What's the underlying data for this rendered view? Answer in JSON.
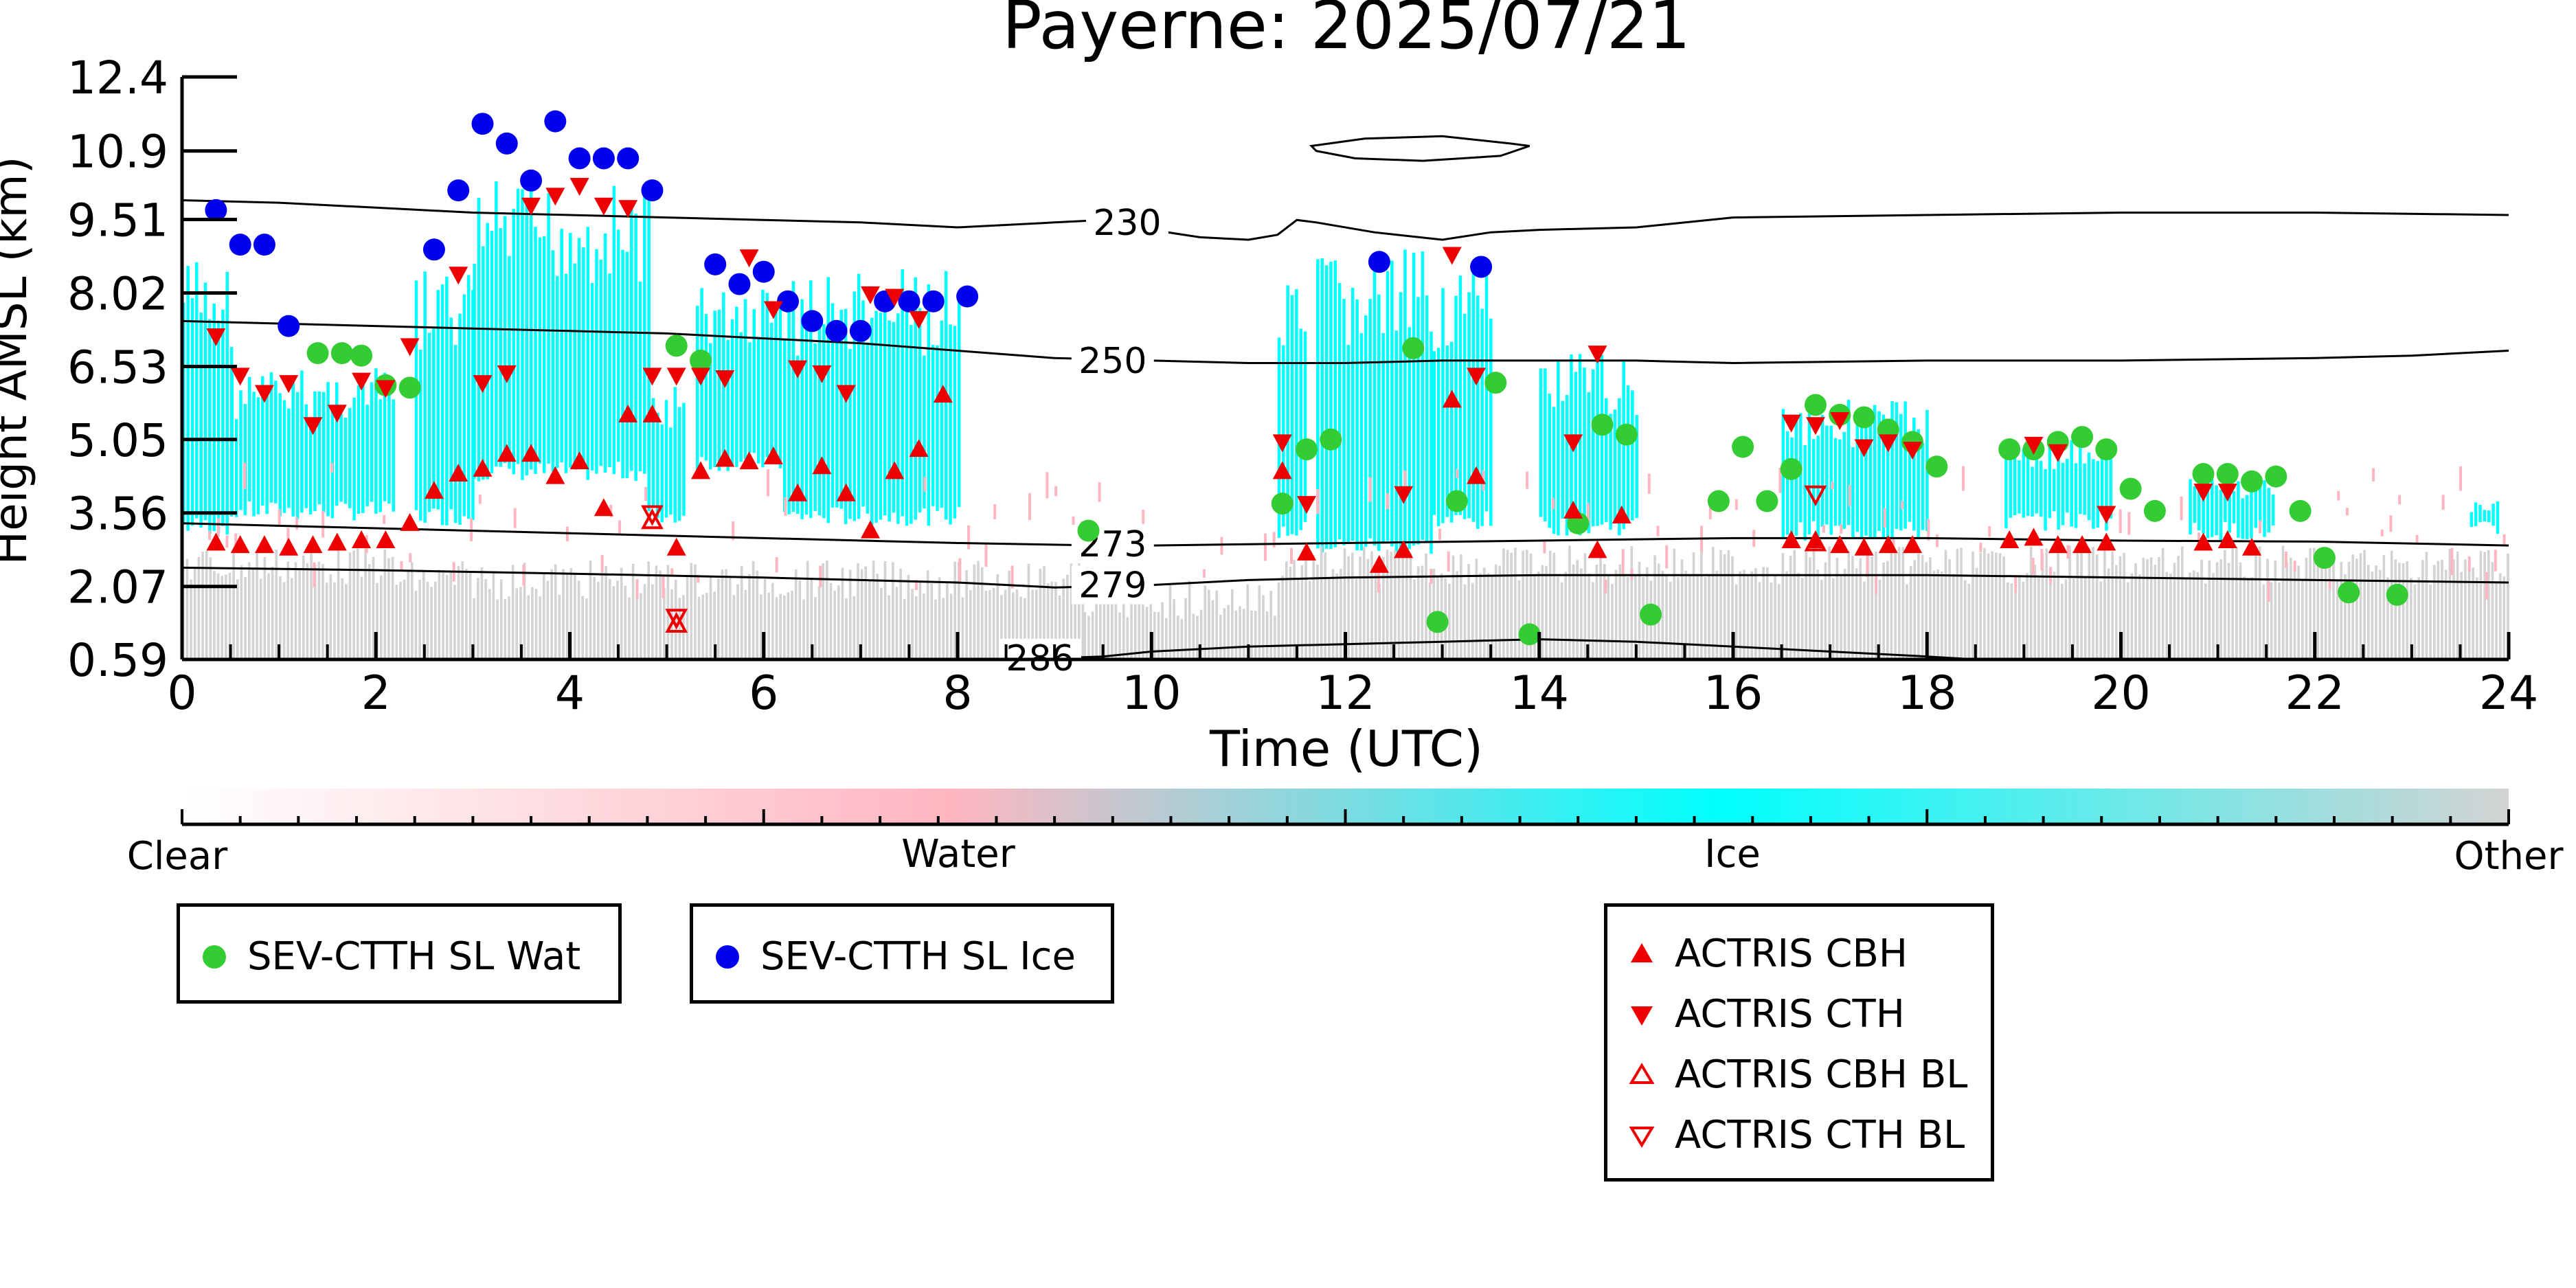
{
  "chart_data": {
    "type": "scatter",
    "title": "Payerne: 2025/07/21",
    "xlabel": "Time (UTC)",
    "ylabel": "Height AMSL (km)",
    "xlim": [
      0,
      24
    ],
    "ylim": [
      0.59,
      12.4
    ],
    "xticks": [
      "0",
      "2",
      "4",
      "6",
      "8",
      "10",
      "12",
      "14",
      "16",
      "18",
      "20",
      "22",
      "24"
    ],
    "yticks": [
      "0.59",
      "2.07",
      "3.56",
      "5.05",
      "6.53",
      "8.02",
      "9.51",
      "10.9",
      "12.4"
    ],
    "colorbar": {
      "labels": [
        "Clear",
        "Water",
        "Ice",
        "Other"
      ],
      "colors": [
        "#ffffff",
        "#ffb6c1",
        "#00ffff",
        "#d3d3d3"
      ]
    },
    "contours": [
      {
        "label": "230",
        "points": [
          [
            0,
            9.9
          ],
          [
            1,
            9.85
          ],
          [
            2,
            9.75
          ],
          [
            3,
            9.65
          ],
          [
            4,
            9.6
          ],
          [
            5,
            9.55
          ],
          [
            6,
            9.5
          ],
          [
            7,
            9.45
          ],
          [
            8,
            9.35
          ],
          [
            9,
            9.45
          ],
          [
            9.5,
            9.5
          ],
          [
            10,
            9.3
          ],
          [
            10.5,
            9.15
          ],
          [
            11,
            9.1
          ],
          [
            11.3,
            9.2
          ],
          [
            11.5,
            9.5
          ],
          [
            11.7,
            9.45
          ],
          [
            12.3,
            9.25
          ],
          [
            13,
            9.1
          ],
          [
            13.5,
            9.25
          ],
          [
            14,
            9.3
          ],
          [
            15,
            9.35
          ],
          [
            16,
            9.55
          ],
          [
            18,
            9.6
          ],
          [
            20,
            9.65
          ],
          [
            22,
            9.65
          ],
          [
            24,
            9.6
          ]
        ]
      },
      {
        "label": "250",
        "points": [
          [
            0,
            7.45
          ],
          [
            1,
            7.4
          ],
          [
            2,
            7.35
          ],
          [
            3,
            7.3
          ],
          [
            4,
            7.25
          ],
          [
            5,
            7.2
          ],
          [
            6,
            7.1
          ],
          [
            7,
            7.0
          ],
          [
            8,
            6.85
          ],
          [
            9,
            6.7
          ],
          [
            10,
            6.65
          ],
          [
            11,
            6.6
          ],
          [
            12,
            6.6
          ],
          [
            13,
            6.65
          ],
          [
            14,
            6.65
          ],
          [
            15,
            6.65
          ],
          [
            16,
            6.6
          ],
          [
            18,
            6.65
          ],
          [
            20,
            6.65
          ],
          [
            22,
            6.7
          ],
          [
            23,
            6.75
          ],
          [
            24,
            6.85
          ]
        ]
      },
      {
        "label": "273",
        "points": [
          [
            0,
            3.35
          ],
          [
            2,
            3.25
          ],
          [
            4,
            3.15
          ],
          [
            6,
            3.05
          ],
          [
            8,
            2.95
          ],
          [
            9.5,
            2.9
          ],
          [
            10,
            2.9
          ],
          [
            12,
            2.95
          ],
          [
            14,
            3.0
          ],
          [
            16,
            3.05
          ],
          [
            18,
            3.05
          ],
          [
            20,
            3.0
          ],
          [
            22,
            2.98
          ],
          [
            24,
            2.9
          ]
        ]
      },
      {
        "label": "279",
        "points": [
          [
            0,
            2.45
          ],
          [
            2,
            2.4
          ],
          [
            4,
            2.33
          ],
          [
            6,
            2.25
          ],
          [
            8,
            2.15
          ],
          [
            9,
            2.05
          ],
          [
            10,
            2.1
          ],
          [
            11,
            2.2
          ],
          [
            12,
            2.25
          ],
          [
            14,
            2.3
          ],
          [
            16,
            2.3
          ],
          [
            18,
            2.3
          ],
          [
            20,
            2.25
          ],
          [
            22,
            2.2
          ],
          [
            24,
            2.15
          ]
        ]
      },
      {
        "label": "286",
        "points": [
          [
            8.6,
            0.59
          ],
          [
            9.5,
            0.65
          ],
          [
            10,
            0.75
          ],
          [
            11,
            0.85
          ],
          [
            12,
            0.9
          ],
          [
            13,
            0.95
          ],
          [
            14,
            1.0
          ],
          [
            15,
            0.95
          ],
          [
            16,
            0.85
          ],
          [
            17,
            0.75
          ],
          [
            18,
            0.65
          ],
          [
            18.5,
            0.59
          ]
        ]
      },
      {
        "label": "",
        "closed": true,
        "points": [
          [
            11.65,
            11.0
          ],
          [
            12.2,
            11.15
          ],
          [
            13.0,
            11.2
          ],
          [
            13.7,
            11.05
          ],
          [
            13.9,
            11.0
          ],
          [
            13.6,
            10.8
          ],
          [
            12.8,
            10.7
          ],
          [
            12.1,
            10.75
          ],
          [
            11.7,
            10.9
          ]
        ]
      }
    ],
    "series": [
      {
        "name": "SEV-CTTH SL Wat",
        "color": "#33cc33",
        "marker": "circle",
        "points": [
          [
            1.4,
            6.8
          ],
          [
            1.65,
            6.8
          ],
          [
            1.85,
            6.75
          ],
          [
            2.1,
            6.15
          ],
          [
            2.35,
            6.1
          ],
          [
            5.1,
            6.95
          ],
          [
            5.35,
            6.65
          ],
          [
            9.35,
            3.2
          ],
          [
            11.35,
            3.75
          ],
          [
            11.6,
            4.85
          ],
          [
            11.85,
            5.05
          ],
          [
            12.7,
            6.9
          ],
          [
            12.95,
            1.35
          ],
          [
            13.15,
            3.8
          ],
          [
            13.55,
            6.2
          ],
          [
            13.9,
            1.1
          ],
          [
            14.4,
            3.35
          ],
          [
            14.65,
            5.35
          ],
          [
            14.9,
            5.15
          ],
          [
            15.15,
            1.5
          ],
          [
            15.85,
            3.8
          ],
          [
            16.1,
            4.9
          ],
          [
            16.35,
            3.8
          ],
          [
            16.6,
            4.45
          ],
          [
            16.85,
            5.75
          ],
          [
            17.1,
            5.55
          ],
          [
            17.35,
            5.5
          ],
          [
            17.6,
            5.25
          ],
          [
            17.85,
            5.0
          ],
          [
            18.1,
            4.5
          ],
          [
            18.85,
            4.85
          ],
          [
            19.1,
            4.85
          ],
          [
            19.35,
            5.0
          ],
          [
            19.6,
            5.1
          ],
          [
            19.85,
            4.85
          ],
          [
            20.1,
            4.05
          ],
          [
            20.35,
            3.6
          ],
          [
            20.85,
            4.35
          ],
          [
            21.1,
            4.35
          ],
          [
            21.35,
            4.2
          ],
          [
            21.6,
            4.3
          ],
          [
            21.85,
            3.6
          ],
          [
            22.1,
            2.65
          ],
          [
            22.35,
            1.95
          ],
          [
            22.85,
            1.9
          ]
        ]
      },
      {
        "name": "SEV-CTTH SL Ice",
        "color": "#0000ee",
        "marker": "circle",
        "points": [
          [
            0.35,
            9.7
          ],
          [
            0.6,
            9.0
          ],
          [
            0.85,
            9.0
          ],
          [
            1.1,
            7.35
          ],
          [
            2.6,
            8.9
          ],
          [
            2.85,
            10.1
          ],
          [
            3.1,
            11.45
          ],
          [
            3.35,
            11.05
          ],
          [
            3.6,
            10.3
          ],
          [
            3.85,
            11.5
          ],
          [
            4.1,
            10.75
          ],
          [
            4.35,
            10.75
          ],
          [
            4.6,
            10.75
          ],
          [
            4.85,
            10.1
          ],
          [
            5.5,
            8.6
          ],
          [
            5.75,
            8.2
          ],
          [
            6.0,
            8.45
          ],
          [
            6.25,
            7.85
          ],
          [
            6.5,
            7.45
          ],
          [
            6.75,
            7.25
          ],
          [
            7.0,
            7.25
          ],
          [
            7.25,
            7.85
          ],
          [
            7.5,
            7.85
          ],
          [
            7.75,
            7.85
          ],
          [
            8.1,
            7.95
          ],
          [
            12.35,
            8.65
          ],
          [
            13.4,
            8.55
          ]
        ]
      },
      {
        "name": "ACTRIS CBH",
        "color": "#ee0000",
        "marker": "triangle-up",
        "points": [
          [
            0.35,
            2.95
          ],
          [
            0.6,
            2.9
          ],
          [
            0.85,
            2.9
          ],
          [
            1.1,
            2.85
          ],
          [
            1.35,
            2.9
          ],
          [
            1.6,
            2.95
          ],
          [
            1.85,
            3.0
          ],
          [
            2.1,
            3.0
          ],
          [
            2.35,
            3.35
          ],
          [
            2.6,
            4.0
          ],
          [
            2.85,
            4.35
          ],
          [
            3.1,
            4.45
          ],
          [
            3.35,
            4.75
          ],
          [
            3.6,
            4.75
          ],
          [
            3.85,
            4.3
          ],
          [
            4.1,
            4.6
          ],
          [
            4.35,
            3.65
          ],
          [
            4.6,
            5.55
          ],
          [
            4.85,
            5.55
          ],
          [
            5.1,
            2.85
          ],
          [
            5.35,
            4.4
          ],
          [
            5.6,
            4.65
          ],
          [
            5.85,
            4.6
          ],
          [
            6.1,
            4.7
          ],
          [
            6.35,
            3.95
          ],
          [
            6.6,
            4.5
          ],
          [
            6.85,
            3.95
          ],
          [
            7.1,
            3.2
          ],
          [
            7.35,
            4.4
          ],
          [
            7.6,
            4.85
          ],
          [
            7.85,
            5.95
          ],
          [
            11.35,
            4.4
          ],
          [
            11.6,
            2.75
          ],
          [
            12.35,
            2.5
          ],
          [
            12.6,
            2.8
          ],
          [
            13.1,
            5.85
          ],
          [
            13.35,
            4.3
          ],
          [
            14.35,
            3.6
          ],
          [
            14.6,
            2.8
          ],
          [
            14.85,
            3.5
          ],
          [
            16.6,
            3.0
          ],
          [
            16.85,
            3.0
          ],
          [
            17.1,
            2.9
          ],
          [
            17.35,
            2.85
          ],
          [
            17.6,
            2.9
          ],
          [
            17.85,
            2.9
          ],
          [
            18.85,
            3.0
          ],
          [
            19.1,
            3.05
          ],
          [
            19.35,
            2.9
          ],
          [
            19.6,
            2.9
          ],
          [
            19.85,
            2.95
          ],
          [
            20.85,
            2.95
          ],
          [
            21.1,
            3.0
          ],
          [
            21.35,
            2.85
          ]
        ]
      },
      {
        "name": "ACTRIS CTH",
        "color": "#ee0000",
        "marker": "triangle-down",
        "points": [
          [
            0.35,
            7.15
          ],
          [
            0.6,
            6.35
          ],
          [
            0.85,
            6.0
          ],
          [
            1.1,
            6.2
          ],
          [
            1.35,
            5.35
          ],
          [
            1.6,
            5.6
          ],
          [
            1.85,
            6.25
          ],
          [
            2.1,
            6.1
          ],
          [
            2.35,
            6.95
          ],
          [
            2.85,
            8.4
          ],
          [
            3.1,
            6.2
          ],
          [
            3.35,
            6.4
          ],
          [
            3.6,
            9.8
          ],
          [
            3.85,
            10.0
          ],
          [
            4.1,
            10.2
          ],
          [
            4.35,
            9.8
          ],
          [
            4.6,
            9.75
          ],
          [
            4.85,
            6.35
          ],
          [
            5.1,
            6.35
          ],
          [
            5.35,
            6.35
          ],
          [
            5.6,
            6.3
          ],
          [
            5.85,
            8.75
          ],
          [
            6.1,
            7.7
          ],
          [
            6.35,
            6.5
          ],
          [
            6.6,
            6.4
          ],
          [
            6.85,
            6.0
          ],
          [
            7.1,
            8.0
          ],
          [
            7.35,
            7.95
          ],
          [
            7.6,
            7.5
          ],
          [
            11.35,
            5.0
          ],
          [
            11.6,
            3.75
          ],
          [
            12.6,
            3.95
          ],
          [
            13.1,
            8.8
          ],
          [
            13.35,
            6.35
          ],
          [
            14.35,
            5.0
          ],
          [
            14.6,
            6.8
          ],
          [
            16.6,
            5.4
          ],
          [
            16.85,
            5.35
          ],
          [
            17.1,
            5.45
          ],
          [
            17.35,
            4.9
          ],
          [
            17.6,
            5.0
          ],
          [
            17.85,
            4.85
          ],
          [
            19.1,
            4.95
          ],
          [
            19.35,
            4.8
          ],
          [
            19.85,
            3.55
          ],
          [
            20.85,
            4.0
          ],
          [
            21.1,
            4.0
          ]
        ]
      },
      {
        "name": "ACTRIS CBH BL",
        "color": "#ee0000",
        "marker": "triangle-up-open",
        "points": [
          [
            4.85,
            3.4
          ],
          [
            5.1,
            1.3
          ],
          [
            16.85,
            2.95
          ]
        ]
      },
      {
        "name": "ACTRIS CTH BL",
        "color": "#ee0000",
        "marker": "triangle-down-open",
        "points": [
          [
            4.85,
            3.55
          ],
          [
            5.1,
            1.45
          ],
          [
            16.85,
            3.95
          ]
        ]
      }
    ]
  }
}
